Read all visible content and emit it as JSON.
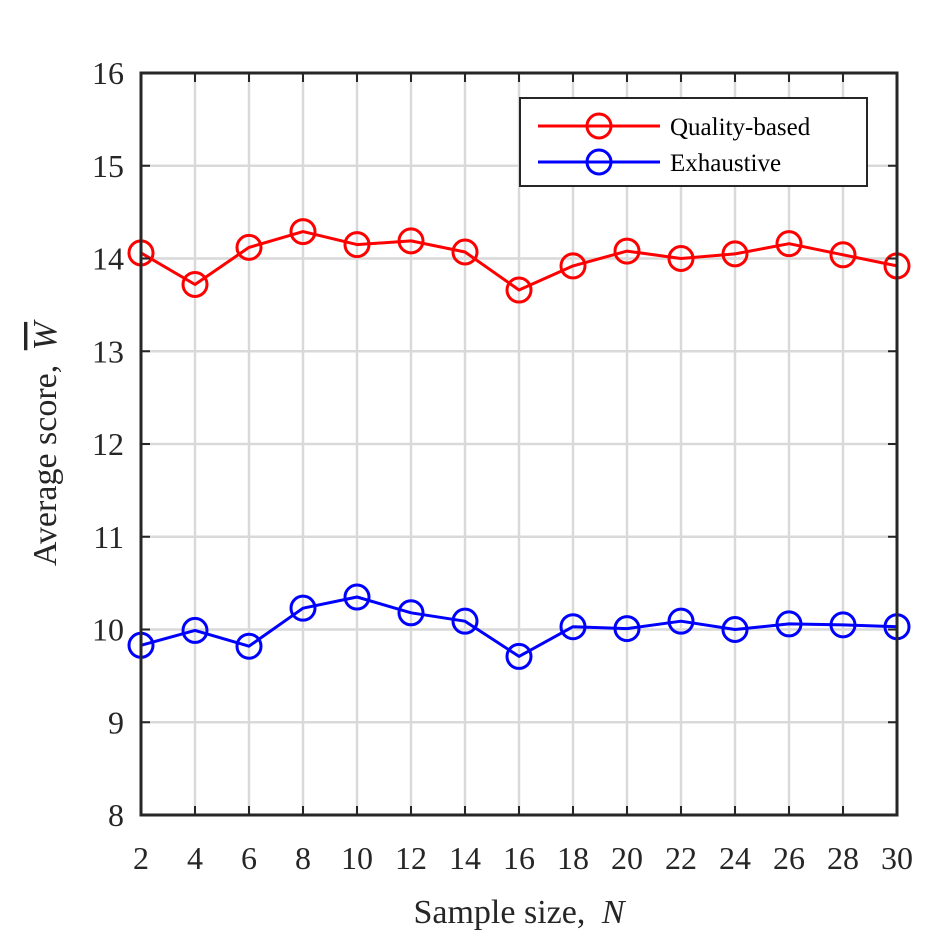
{
  "chart_data": {
    "type": "line",
    "title": "",
    "xlabel_prefix": "Sample size,",
    "xlabel_var": "N",
    "ylabel_prefix": "Average score,",
    "ylabel_var": "W",
    "x": [
      2,
      4,
      6,
      8,
      10,
      12,
      14,
      16,
      18,
      20,
      22,
      24,
      26,
      28,
      30
    ],
    "xlim": [
      2,
      30
    ],
    "ylim": [
      8,
      16
    ],
    "xticks": [
      "2",
      "4",
      "6",
      "8",
      "10",
      "12",
      "14",
      "16",
      "18",
      "20",
      "22",
      "24",
      "26",
      "28",
      "30"
    ],
    "yticks": [
      "8",
      "9",
      "10",
      "11",
      "12",
      "13",
      "14",
      "15",
      "16"
    ],
    "grid": true,
    "legend_position": "top-right",
    "marker": "circle",
    "series": [
      {
        "name": "Quality-based",
        "color": "#ff0000",
        "values": [
          14.06,
          13.72,
          14.12,
          14.29,
          14.15,
          14.19,
          14.07,
          13.66,
          13.92,
          14.08,
          14.0,
          14.05,
          14.16,
          14.04,
          13.92
        ]
      },
      {
        "name": "Exhaustive",
        "color": "#0000ff",
        "values": [
          9.83,
          9.99,
          9.82,
          10.23,
          10.35,
          10.18,
          10.09,
          9.71,
          10.03,
          10.01,
          10.09,
          10.0,
          10.06,
          10.05,
          10.03
        ]
      }
    ]
  }
}
